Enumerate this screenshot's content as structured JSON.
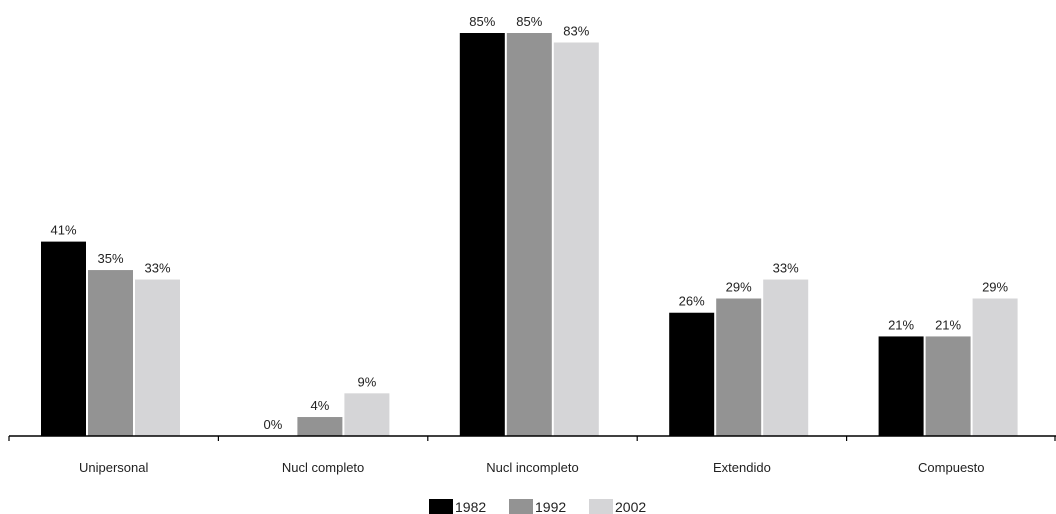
{
  "chart_data": {
    "type": "bar",
    "title": "",
    "xlabel": "",
    "ylabel": "",
    "ylim": [
      0,
      85
    ],
    "grid": false,
    "legend_position": "bottom-center",
    "categories": [
      "Unipersonal",
      "Nucl completo",
      "Nucl incompleto",
      "Extendido",
      "Compuesto"
    ],
    "series": [
      {
        "name": "1982",
        "color": "#000000",
        "values": [
          41,
          0,
          85,
          26,
          21
        ],
        "labels": [
          "41%",
          "0%",
          "85%",
          "26%",
          "21%"
        ]
      },
      {
        "name": "1992",
        "color": "#939393",
        "values": [
          35,
          4,
          85,
          29,
          21
        ],
        "labels": [
          "35%",
          "4%",
          "85%",
          "29%",
          "21%"
        ]
      },
      {
        "name": "2002",
        "color": "#d5d5d7",
        "values": [
          33,
          9,
          83,
          33,
          29
        ],
        "labels": [
          "33%",
          "9%",
          "83%",
          "33%",
          "29%"
        ]
      }
    ]
  }
}
